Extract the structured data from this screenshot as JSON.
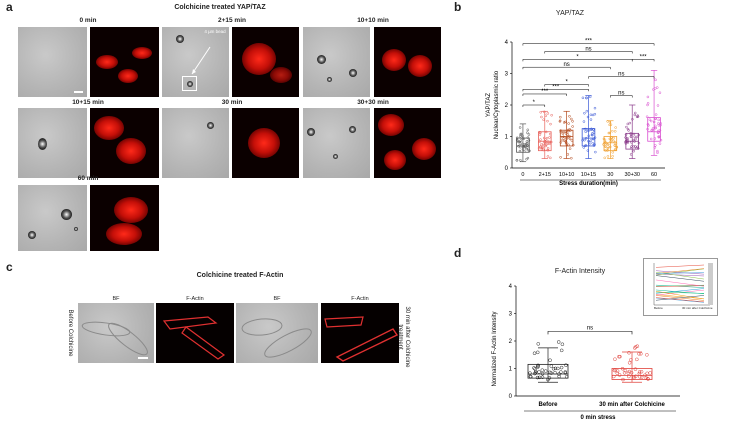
{
  "panels": {
    "a": {
      "letter": "a",
      "title": "Colchicine treated YAP/TAZ",
      "timepoints": [
        "0 min",
        "2+15 min",
        "10+10 min",
        "10+15 min",
        "30 min",
        "30+30 min",
        "60 min"
      ],
      "bead_annotation": "4 µm bead"
    },
    "b": {
      "letter": "b",
      "chart_data": {
        "type": "box",
        "title": "YAP/TAZ",
        "ylabel_line1": "YAP/TAZ",
        "ylabel_line2": "Nuclear/Cytoplasmic ratio",
        "xlabel": "Stress duration(min)",
        "categories": [
          "0",
          "2+15",
          "10+10",
          "10+15",
          "30",
          "30+30",
          "60"
        ],
        "ylim": [
          0,
          4
        ],
        "yticks": [
          0,
          1,
          2,
          3,
          4
        ],
        "box_colors": [
          "#555555",
          "#e8605a",
          "#b34a1e",
          "#3a58d6",
          "#f0a030",
          "#8a3a8a",
          "#d94fd0"
        ],
        "boxes": [
          {
            "min": 0.2,
            "q1": 0.5,
            "median": 0.7,
            "q3": 0.95,
            "max": 1.4
          },
          {
            "min": 0.3,
            "q1": 0.55,
            "median": 0.85,
            "q3": 1.15,
            "max": 1.8
          },
          {
            "min": 0.3,
            "q1": 0.7,
            "median": 1.0,
            "q3": 1.2,
            "max": 1.8
          },
          {
            "min": 0.3,
            "q1": 0.7,
            "median": 0.95,
            "q3": 1.25,
            "max": 2.3
          },
          {
            "min": 0.3,
            "q1": 0.55,
            "median": 0.8,
            "q3": 1.0,
            "max": 1.5
          },
          {
            "min": 0.3,
            "q1": 0.6,
            "median": 0.85,
            "q3": 1.1,
            "max": 2.0
          },
          {
            "min": 0.4,
            "q1": 0.85,
            "median": 1.15,
            "q3": 1.6,
            "max": 3.1
          }
        ],
        "significance": [
          {
            "from": "0",
            "to": "2+15",
            "label": "*"
          },
          {
            "from": "0",
            "to": "10+10",
            "label": "***"
          },
          {
            "from": "2+15",
            "to": "10+15",
            "label": "*"
          },
          {
            "from": "0",
            "to": "10+15",
            "label": "***"
          },
          {
            "from": "10+15",
            "to": "60",
            "label": "ns"
          },
          {
            "from": "30",
            "to": "30+30",
            "label": "ns"
          },
          {
            "from": "0",
            "to": "30",
            "label": "ns"
          },
          {
            "from": "0",
            "to": "30+30",
            "label": "*"
          },
          {
            "from": "2+15",
            "to": "30+30",
            "label": "ns"
          },
          {
            "from": "30+30",
            "to": "60",
            "label": "***"
          },
          {
            "from": "0",
            "to": "60",
            "label": "***"
          }
        ]
      }
    },
    "c": {
      "letter": "c",
      "title": "Colchicine treated F-Actin",
      "col_labels": [
        "BF",
        "F-Actin",
        "BF",
        "F-Actin"
      ],
      "left_label": "Before Colchicine",
      "right_label": "30 min after Colchicine treatment"
    },
    "d": {
      "letter": "d",
      "chart_data": {
        "type": "box",
        "title": "F-Actin Intensity",
        "ylabel": "Normalized F-Actin Intensity",
        "xlabel": "0 min stress",
        "categories": [
          "Before",
          "30 min after Colchicine"
        ],
        "ylim": [
          0,
          4
        ],
        "yticks": [
          0,
          1,
          2,
          3,
          4
        ],
        "box_colors": [
          "#222222",
          "#e0403a"
        ],
        "boxes": [
          {
            "min": 0.5,
            "q1": 0.65,
            "median": 0.8,
            "q3": 1.15,
            "max": 1.75
          },
          {
            "min": 0.5,
            "q1": 0.6,
            "median": 0.75,
            "q3": 1.0,
            "max": 1.6
          }
        ],
        "significance": [
          {
            "from": "Before",
            "to": "30 min after Colchicine",
            "label": "ns"
          }
        ],
        "inset_labels": [
          "Before",
          "30 min after Colchicine"
        ]
      }
    }
  }
}
